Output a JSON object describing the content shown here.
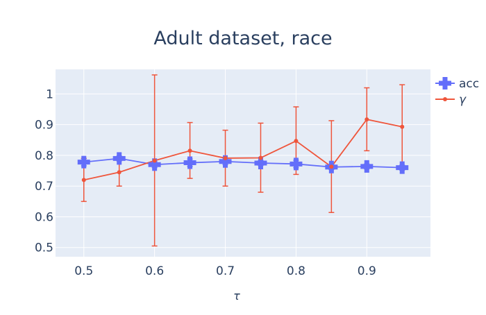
{
  "chart_data": {
    "type": "line",
    "title": "Adult dataset, race",
    "xlabel": "τ",
    "ylabel": "",
    "xlim": [
      0.46,
      0.99
    ],
    "ylim": [
      0.47,
      1.08
    ],
    "xticks": [
      0.5,
      0.6,
      0.7,
      0.8,
      0.9
    ],
    "xtick_labels": [
      "0.5",
      "0.6",
      "0.7",
      "0.8",
      "0.9"
    ],
    "yticks": [
      0.5,
      0.6,
      0.7,
      0.8,
      0.9,
      1.0
    ],
    "ytick_labels": [
      "0.5",
      "0.6",
      "0.7",
      "0.8",
      "0.9",
      "1"
    ],
    "grid": true,
    "legend_position": "top-right",
    "x": [
      0.5,
      0.55,
      0.6,
      0.65,
      0.7,
      0.75,
      0.8,
      0.85,
      0.9,
      0.95
    ],
    "series": [
      {
        "name": "acc",
        "color": "#636efa",
        "marker": "cross",
        "values": [
          0.778,
          0.79,
          0.77,
          0.776,
          0.78,
          0.775,
          0.772,
          0.762,
          0.764,
          0.76
        ],
        "error": [
          0.012,
          0.008,
          0.01,
          0.012,
          0.01,
          0.008,
          0.012,
          0.008,
          0.008,
          0.008
        ]
      },
      {
        "name": "γ",
        "color": "#ef553b",
        "marker": "circle",
        "values": [
          0.72,
          0.745,
          0.783,
          0.815,
          0.791,
          0.792,
          0.847,
          0.763,
          0.917,
          0.893
        ],
        "error_upper": [
          0.79,
          0.79,
          1.062,
          0.907,
          0.882,
          0.905,
          0.958,
          0.913,
          1.02,
          1.03
        ],
        "error_lower": [
          0.65,
          0.7,
          0.505,
          0.725,
          0.7,
          0.68,
          0.738,
          0.614,
          0.815,
          0.757
        ]
      }
    ]
  }
}
